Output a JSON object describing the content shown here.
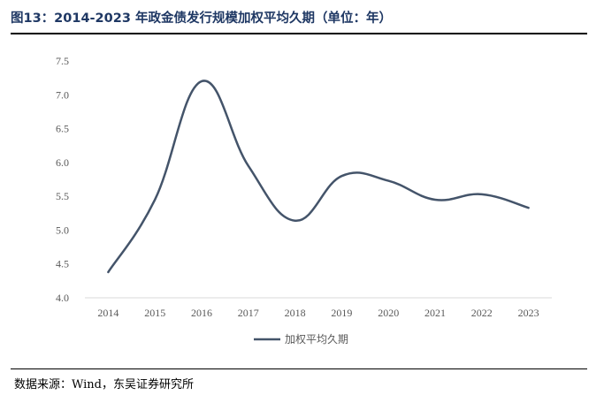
{
  "header": {
    "figure_title": "图13：2014-2023 年政金债发行规模加权平均久期（单位：年）"
  },
  "footer": {
    "source": "数据来源：Wind，东吴证券研究所"
  },
  "chart_data": {
    "type": "line",
    "title": "图13：2014-2023 年政金债发行规模加权平均久期（单位：年）",
    "xlabel": "",
    "ylabel": "",
    "categories": [
      "2014",
      "2015",
      "2016",
      "2017",
      "2018",
      "2019",
      "2020",
      "2021",
      "2022",
      "2023"
    ],
    "series": [
      {
        "name": "加权平均久期",
        "values": [
          4.38,
          5.45,
          7.2,
          5.95,
          5.14,
          5.8,
          5.73,
          5.45,
          5.53,
          5.33
        ]
      }
    ],
    "ylim": [
      4.0,
      7.5
    ],
    "yticks": [
      "4.0",
      "4.5",
      "5.0",
      "5.5",
      "6.0",
      "6.5",
      "7.0",
      "7.5"
    ],
    "grid": false,
    "legend_position": "bottom",
    "line_color": "#44546a"
  }
}
